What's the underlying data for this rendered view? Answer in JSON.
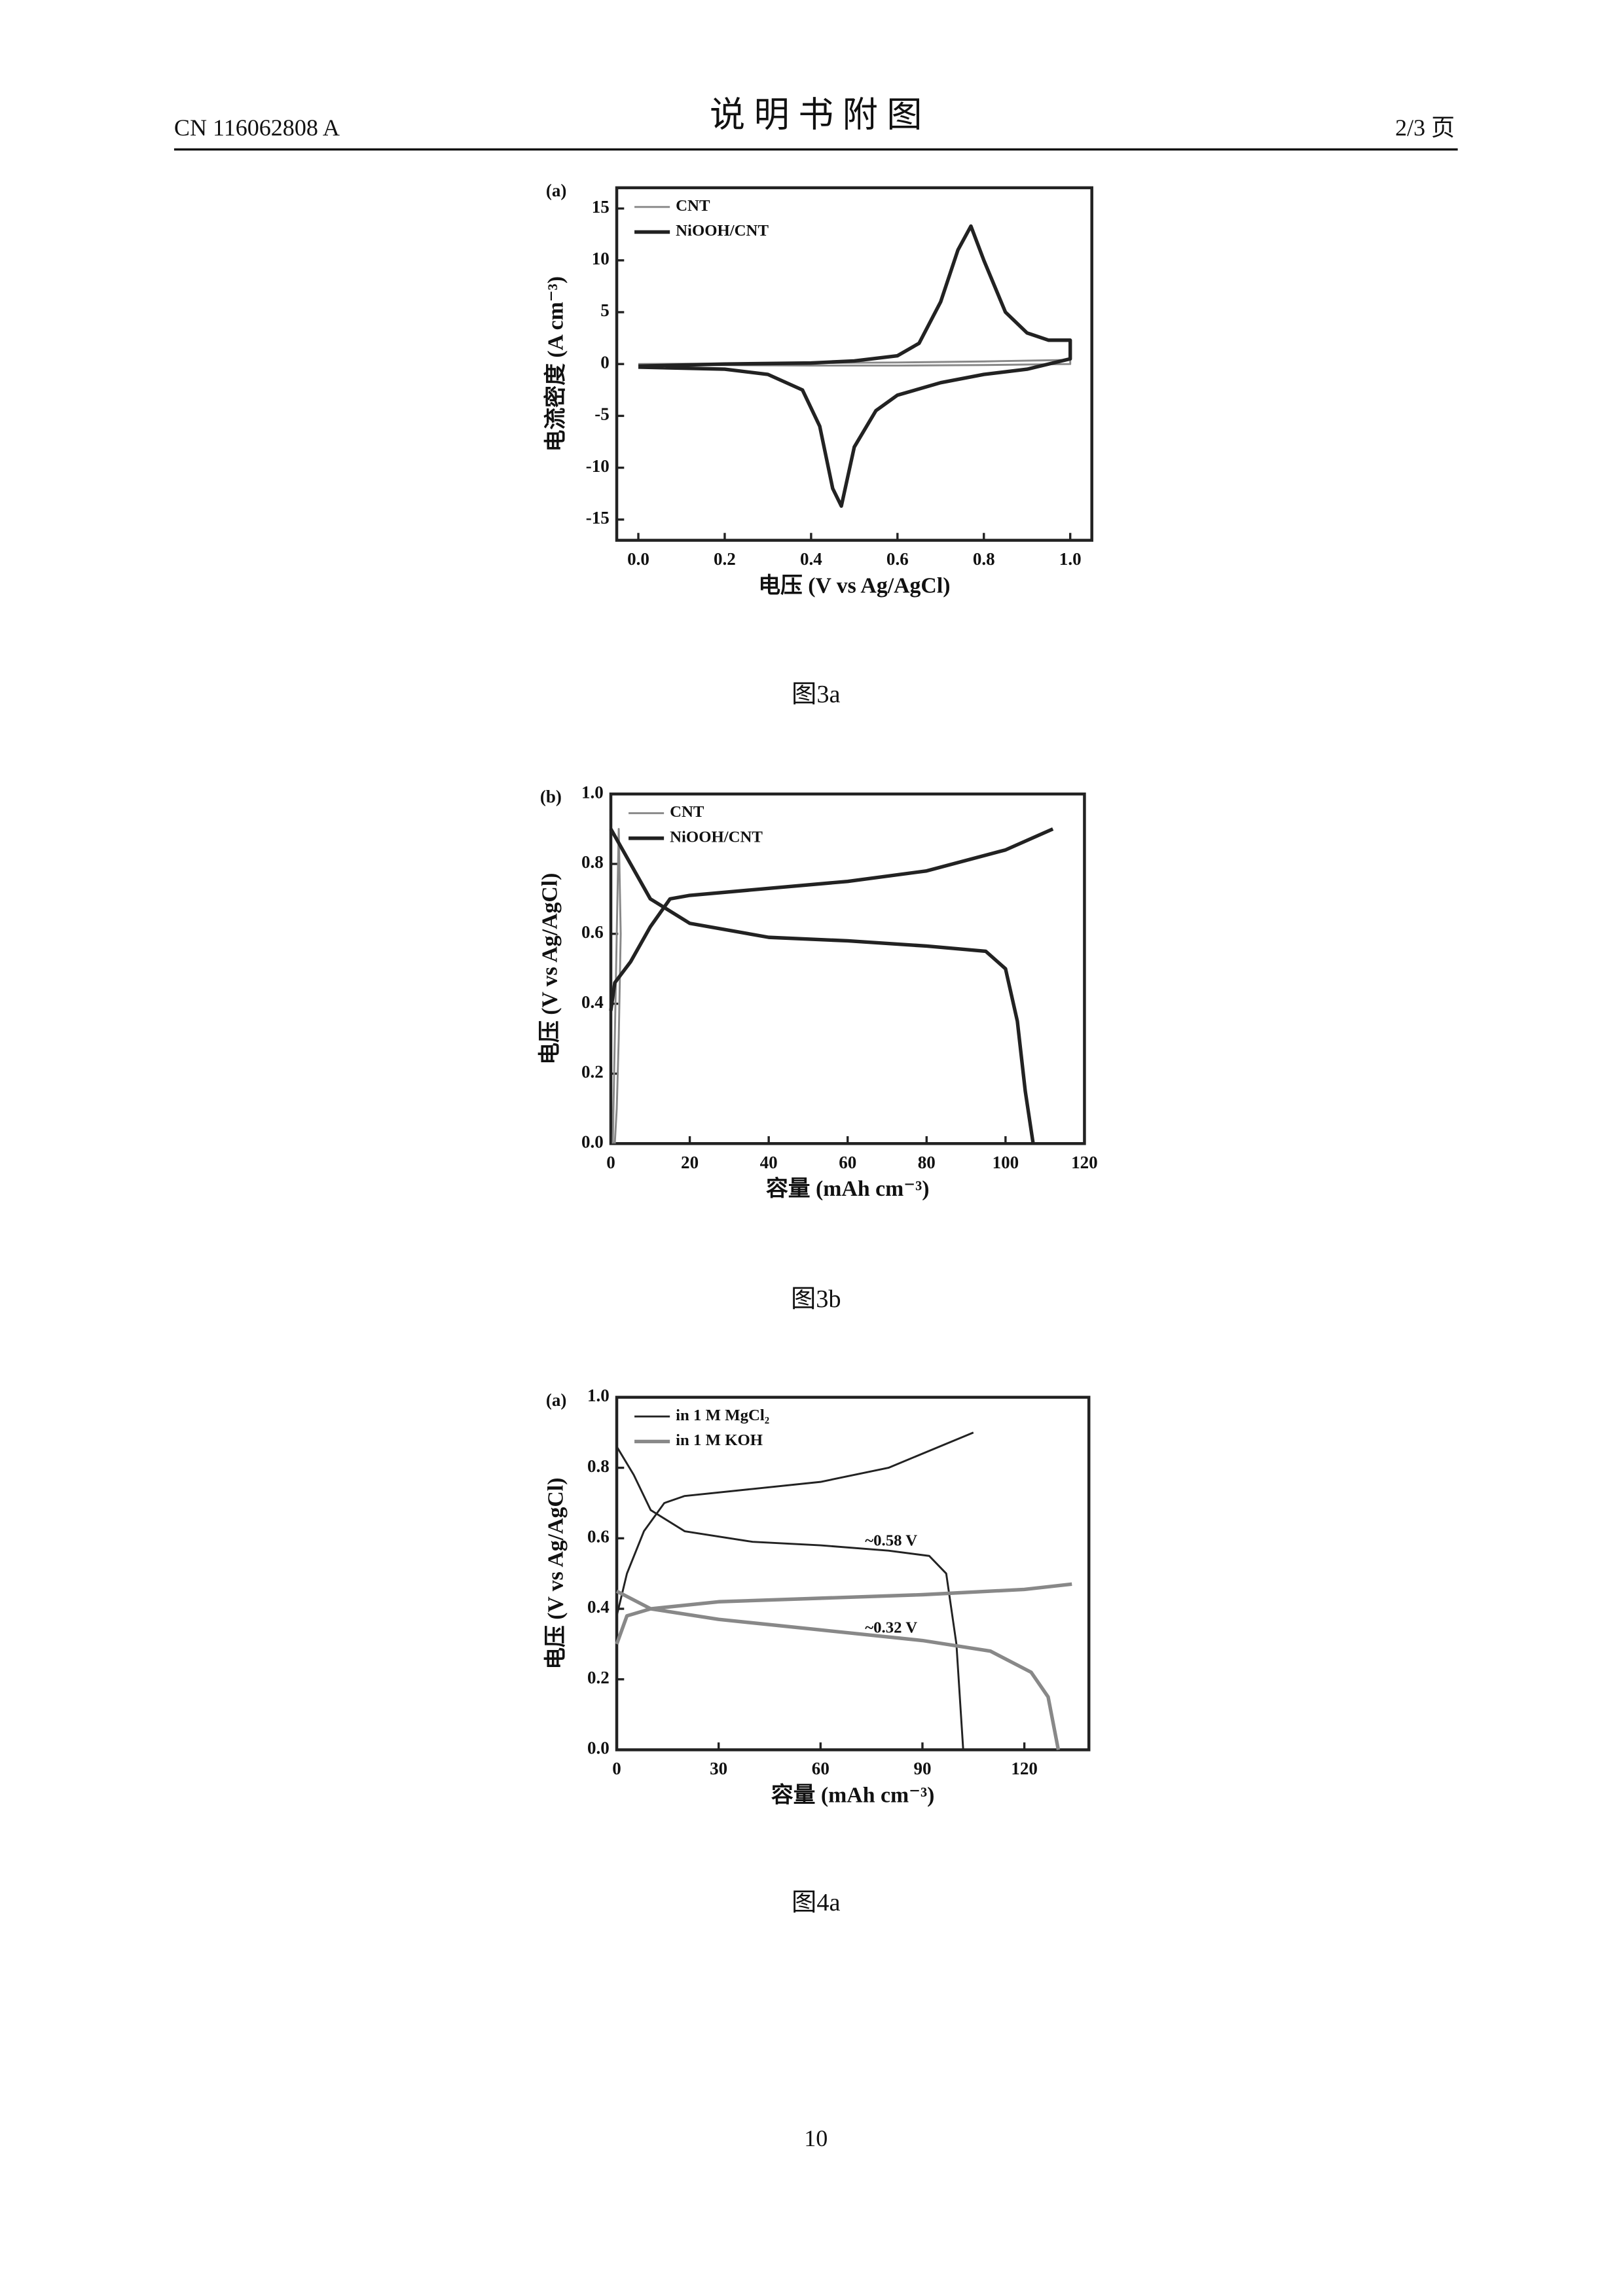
{
  "header": {
    "doc_number": "CN 116062808 A",
    "title": "说 明 书 附 图",
    "page_info": "2/3 页"
  },
  "captions": [
    "图3a",
    "图3b",
    "图4a"
  ],
  "page_number": "10",
  "chart_data": [
    {
      "type": "line",
      "panel_label": "(a)",
      "x_label": "电压 (V vs Ag/AgCl)",
      "y_label": "电流密度 (A cm⁻³)",
      "xlim": [
        -0.05,
        1.05
      ],
      "ylim": [
        -17,
        17
      ],
      "xticks": [
        {
          "value": 0,
          "label": "0.0"
        },
        {
          "value": 0.2,
          "label": "0.2"
        },
        {
          "value": 0.4,
          "label": "0.4"
        },
        {
          "value": 0.6,
          "label": "0.6"
        },
        {
          "value": 0.8,
          "label": "0.8"
        },
        {
          "value": 1,
          "label": "1.0"
        }
      ],
      "yticks": [
        -15,
        -10,
        -5,
        0,
        5,
        10,
        15
      ],
      "grid": false,
      "legend": "upper left",
      "annotations": [],
      "series": [
        {
          "name": "CNT",
          "color": "#888888",
          "x": [
            0,
            0.2,
            0.4,
            0.6,
            0.8,
            1.0,
            1.0,
            0.8,
            0.6,
            0.4,
            0.2,
            0
          ],
          "values": [
            0,
            0.05,
            0.1,
            0.15,
            0.25,
            0.4,
            0,
            -0.1,
            -0.15,
            -0.15,
            -0.1,
            -0.05
          ]
        },
        {
          "name": "NiOOH/CNT",
          "color": "#222222",
          "x": [
            0,
            0.2,
            0.4,
            0.5,
            0.6,
            0.65,
            0.7,
            0.74,
            0.77,
            0.8,
            0.85,
            0.9,
            0.95,
            1.0,
            1.0,
            0.9,
            0.8,
            0.7,
            0.6,
            0.55,
            0.5,
            0.47,
            0.45,
            0.42,
            0.38,
            0.3,
            0.2,
            0
          ],
          "values": [
            -0.2,
            0,
            0.1,
            0.3,
            0.8,
            2,
            6,
            11,
            13.3,
            10,
            5,
            3,
            2.3,
            2.3,
            0.5,
            -0.5,
            -1,
            -1.8,
            -3,
            -4.5,
            -8,
            -13.7,
            -12,
            -6,
            -2.5,
            -1,
            -0.5,
            -0.3
          ]
        }
      ]
    },
    {
      "type": "line",
      "panel_label": "(b)",
      "x_label": "容量 (mAh cm⁻³)",
      "y_label": "电压 (V vs Ag/AgCl)",
      "xlim": [
        0,
        120
      ],
      "ylim": [
        0,
        1
      ],
      "xticks": [
        0,
        20,
        40,
        60,
        80,
        100,
        120
      ],
      "yticks": [
        {
          "value": 0,
          "label": "0.0"
        },
        {
          "value": 0.2,
          "label": "0.2"
        },
        {
          "value": 0.4,
          "label": "0.4"
        },
        {
          "value": 0.6,
          "label": "0.6"
        },
        {
          "value": 0.8,
          "label": "0.8"
        },
        {
          "value": 1,
          "label": "1.0"
        }
      ],
      "grid": false,
      "legend": "upper left",
      "annotations": [],
      "series": [
        {
          "name": "CNT",
          "color": "#888888",
          "x": [
            0.5,
            1,
            1.5,
            2,
            2.5,
            2,
            1.5,
            1
          ],
          "values": [
            0,
            0.3,
            0.6,
            0.9,
            0.6,
            0.3,
            0.1,
            0
          ]
        },
        {
          "name": "NiOOH/CNT",
          "color": "#222222",
          "x": [
            0,
            1,
            5,
            10,
            15,
            20,
            40,
            60,
            80,
            100,
            112,
            112,
            0,
            5,
            10,
            20,
            40,
            60,
            80,
            95,
            100,
            103,
            105,
            107
          ],
          "values": [
            0.38,
            0.46,
            0.52,
            0.62,
            0.7,
            0.71,
            0.73,
            0.75,
            0.78,
            0.84,
            0.9,
            null,
            0.9,
            0.8,
            0.7,
            0.63,
            0.59,
            0.58,
            0.565,
            0.55,
            0.5,
            0.35,
            0.15,
            0
          ]
        }
      ]
    },
    {
      "type": "line",
      "panel_label": "(a)",
      "x_label": "容量 (mAh cm⁻³)",
      "y_label": "电压 (V vs Ag/AgCl)",
      "xlim": [
        0,
        139
      ],
      "ylim": [
        0,
        1
      ],
      "xticks": [
        0,
        30,
        60,
        90,
        120
      ],
      "yticks": [
        {
          "value": 0,
          "label": "0.0"
        },
        {
          "value": 0.2,
          "label": "0.2"
        },
        {
          "value": 0.4,
          "label": "0.4"
        },
        {
          "value": 0.6,
          "label": "0.6"
        },
        {
          "value": 0.8,
          "label": "0.8"
        },
        {
          "value": 1,
          "label": "1.0"
        }
      ],
      "grid": false,
      "legend": "upper left",
      "annotations": [
        "~0.58 V",
        "~0.32 V"
      ],
      "series": [
        {
          "name": "in 1 M MgCl₂",
          "color": "#222222",
          "x": [
            0,
            3,
            8,
            14,
            20,
            40,
            60,
            80,
            95,
            105,
            105,
            0,
            5,
            10,
            20,
            40,
            60,
            80,
            92,
            97,
            100,
            102
          ],
          "values": [
            0.38,
            0.5,
            0.62,
            0.7,
            0.72,
            0.74,
            0.76,
            0.8,
            0.86,
            0.9,
            null,
            0.86,
            0.78,
            0.68,
            0.62,
            0.59,
            0.58,
            0.565,
            0.55,
            0.5,
            0.3,
            0
          ]
        },
        {
          "name": "in 1 M KOH",
          "color": "#888888",
          "x": [
            0,
            3,
            10,
            30,
            60,
            90,
            120,
            134,
            134,
            0,
            10,
            30,
            60,
            90,
            110,
            122,
            127,
            129,
            130
          ],
          "values": [
            0.3,
            0.38,
            0.4,
            0.42,
            0.43,
            0.44,
            0.455,
            0.47,
            null,
            0.45,
            0.4,
            0.37,
            0.34,
            0.31,
            0.28,
            0.22,
            0.15,
            0.05,
            0
          ]
        }
      ]
    }
  ]
}
